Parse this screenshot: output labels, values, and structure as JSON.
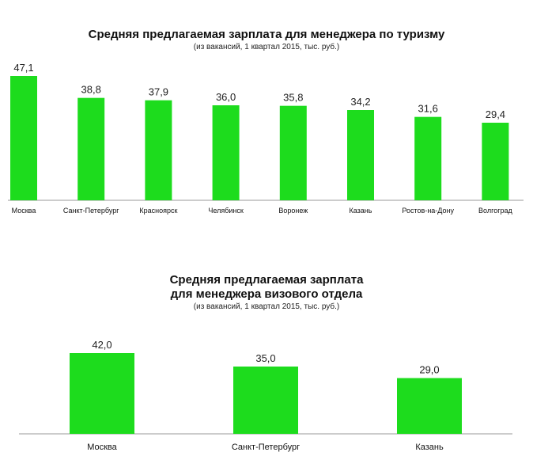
{
  "chart_data": [
    {
      "type": "bar",
      "title": "Средняя предлагаемая зарплата для менеджера по туризму",
      "subtitle": "(из вакансий, 1 квартал 2015, тыс. руб.)",
      "categories": [
        "Москва",
        "Санкт-Петербург",
        "Красноярск",
        "Челябинск",
        "Воронеж",
        "Казань",
        "Ростов-на-Дону",
        "Волгоград"
      ],
      "values": [
        47.1,
        38.8,
        37.9,
        36.0,
        35.8,
        34.2,
        31.6,
        29.4
      ],
      "labels": [
        "47,1",
        "38,8",
        "37,9",
        "36,0",
        "35,8",
        "34,2",
        "31,6",
        "29,4"
      ],
      "xlabel": "",
      "ylabel": "",
      "ylim": [
        0,
        47.1
      ],
      "grid": false,
      "bar_color": "#1ddc1d"
    },
    {
      "type": "bar",
      "title_lines": [
        "Средняя предлагаемая зарплата",
        "для менеджера визового отдела"
      ],
      "subtitle": "(из вакансий, 1 квартал 2015, тыс. руб.)",
      "categories": [
        "Москва",
        "Санкт-Петербург",
        "Казань"
      ],
      "values": [
        42.0,
        35.0,
        29.0
      ],
      "labels": [
        "42,0",
        "35,0",
        "29,0"
      ],
      "xlabel": "",
      "ylabel": "",
      "ylim": [
        0,
        42.0
      ],
      "grid": false,
      "bar_color": "#1ddc1d"
    }
  ]
}
